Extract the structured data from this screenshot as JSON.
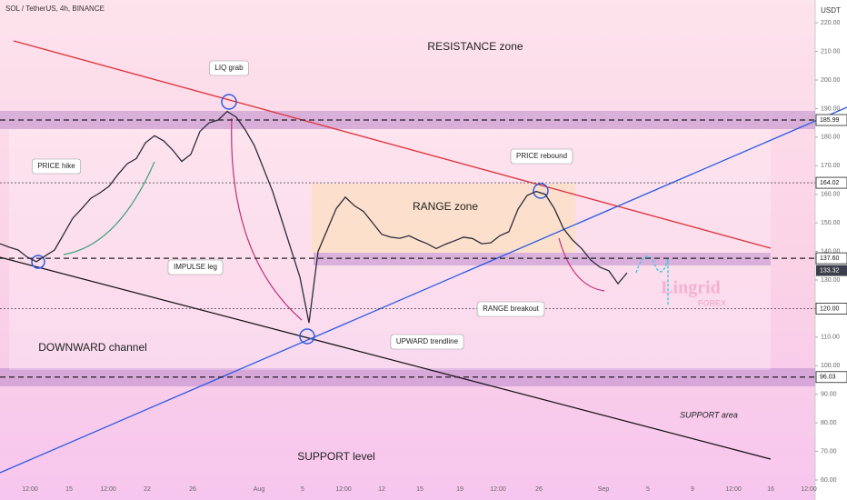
{
  "chart_data": {
    "type": "line",
    "header": "SOL / TetherUS, 4h, BINANCE",
    "currency": "USDT",
    "watermark": {
      "brand": "Lingrid",
      "sub": "FOREX"
    },
    "ylim": [
      53,
      228
    ],
    "yticks": [
      {
        "value": 60,
        "label": "60.00"
      },
      {
        "value": 70,
        "label": "70.00"
      },
      {
        "value": 80,
        "label": "80.00"
      },
      {
        "value": 90,
        "label": "90.00"
      },
      {
        "value": 100,
        "label": "100.00"
      },
      {
        "value": 110,
        "label": "110.00"
      },
      {
        "value": 120,
        "label": "120.00"
      },
      {
        "value": 130,
        "label": "130.00"
      },
      {
        "value": 140,
        "label": "140.00"
      },
      {
        "value": 150,
        "label": "150.00"
      },
      {
        "value": 160,
        "label": "160.00"
      },
      {
        "value": 170,
        "label": "170.00"
      },
      {
        "value": 180,
        "label": "180.00"
      },
      {
        "value": 190,
        "label": "190.00"
      },
      {
        "value": 200,
        "label": "200.00"
      },
      {
        "value": 210,
        "label": "210.00"
      },
      {
        "value": 220,
        "label": "220.00"
      }
    ],
    "xtick_labels": [
      "12:00",
      "15",
      "12:00",
      "22",
      "26",
      "Aug",
      "5",
      "12:00",
      "12",
      "15",
      "19",
      "12:00",
      "26",
      "Sep",
      "5",
      "9",
      "12:00",
      "16",
      "12:00"
    ],
    "series": [
      {
        "name": "SOL",
        "color": "#2b2b3a",
        "values": [
          142.7,
          141.5,
          140.5,
          138,
          136.4,
          138.5,
          140.5,
          146,
          151.6,
          155,
          158.6,
          160.5,
          162.8,
          167,
          170.7,
          172.5,
          178,
          180.5,
          178.7,
          175.5,
          171.5,
          174,
          182,
          185,
          186,
          189,
          187,
          182.5,
          177,
          169,
          161,
          151,
          141,
          131,
          115,
          140,
          147.5,
          155,
          159,
          156,
          154,
          150,
          146,
          145,
          144.6,
          145.5,
          144,
          142.7,
          141,
          142.5,
          143.7,
          145,
          144.5,
          142.7,
          143,
          145.5,
          146.9,
          154.8,
          159.6,
          161,
          160,
          155,
          148,
          144,
          141,
          137,
          134.5,
          133.2,
          128.7,
          132.5
        ]
      }
    ],
    "levels": [
      {
        "value": 185.99,
        "label": "185.99",
        "style": "dashed"
      },
      {
        "value": 164.02,
        "label": "164.02",
        "style": "dotted"
      },
      {
        "value": 137.6,
        "label": "137.60",
        "style": "dashed"
      },
      {
        "value": 120,
        "label": "120.00",
        "style": "dotted"
      },
      {
        "value": 96.03,
        "label": "96.03",
        "style": "dashed"
      }
    ],
    "last_price": {
      "value": 133.32,
      "label": "133.32",
      "color": "#3a3f4b"
    },
    "annotations": [
      "RESISTANCE zone",
      "LIQ grab",
      "PRICE hike",
      "IMPULSE leg",
      "RANGE zone",
      "PRICE rebound",
      "UPWARD trendline",
      "RANGE breakout",
      "DOWNWARD channel",
      "SUPPORT level",
      "SUPPORT area"
    ]
  }
}
